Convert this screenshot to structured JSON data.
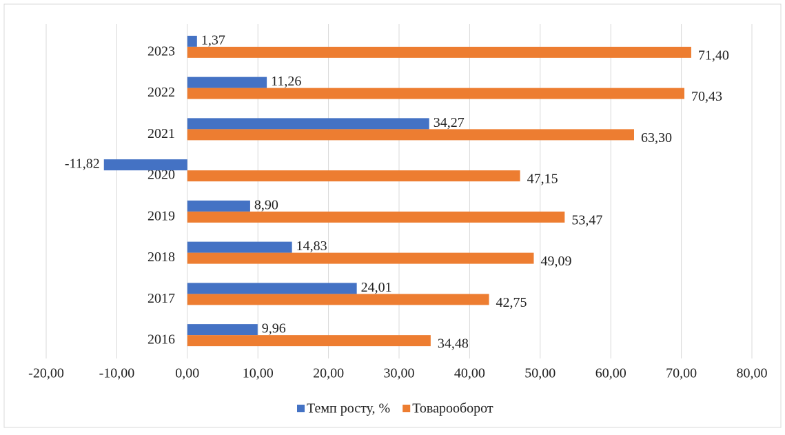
{
  "chart_data": {
    "type": "hbar",
    "categories": [
      "2016",
      "2017",
      "2018",
      "2019",
      "2020",
      "2021",
      "2022",
      "2023"
    ],
    "series": [
      {
        "name": "Темп росту, %",
        "color": "#4472c4",
        "values": [
          9.96,
          24.01,
          14.83,
          8.9,
          -11.82,
          34.27,
          11.26,
          1.37
        ],
        "value_labels": [
          "9,96",
          "24,01",
          "14,83",
          "8,90",
          "-11,82",
          "34,27",
          "11,26",
          "1,37"
        ]
      },
      {
        "name": "Товарооборот",
        "color": "#ed7d31",
        "values": [
          34.48,
          42.75,
          49.09,
          53.47,
          47.15,
          63.3,
          70.43,
          71.4
        ],
        "value_labels": [
          "34,48",
          "42,75",
          "49,09",
          "53,47",
          "47,15",
          "63,30",
          "70,43",
          "71,40"
        ]
      }
    ],
    "xlim": [
      -20,
      80
    ],
    "xticks": [
      {
        "value": -20,
        "label": "-20,00"
      },
      {
        "value": -10,
        "label": "-10,00"
      },
      {
        "value": 0,
        "label": "0,00"
      },
      {
        "value": 10,
        "label": "10,00"
      },
      {
        "value": 20,
        "label": "20,00"
      },
      {
        "value": 30,
        "label": "30,00"
      },
      {
        "value": 40,
        "label": "40,00"
      },
      {
        "value": 50,
        "label": "50,00"
      },
      {
        "value": 60,
        "label": "60,00"
      },
      {
        "value": 70,
        "label": "70,00"
      },
      {
        "value": 80,
        "label": "80,00"
      }
    ],
    "grid": true,
    "legend": "bottom"
  }
}
